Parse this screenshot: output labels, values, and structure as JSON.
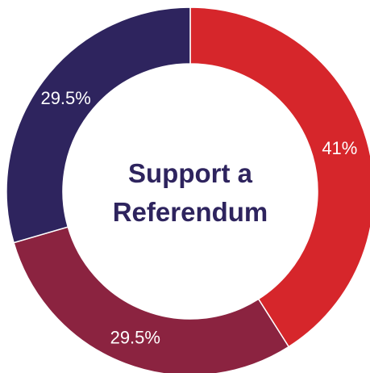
{
  "chart_data": {
    "type": "pie",
    "title_lines": [
      "Support a",
      "Referendum"
    ],
    "slices": [
      {
        "value": 41,
        "label": "41%",
        "color": "#d6262b"
      },
      {
        "value": 29.5,
        "label": "29.5%",
        "color": "#8b2340"
      },
      {
        "value": 29.5,
        "label": "29.5%",
        "color": "#2e245e"
      }
    ],
    "title_color": "#2e245e"
  }
}
